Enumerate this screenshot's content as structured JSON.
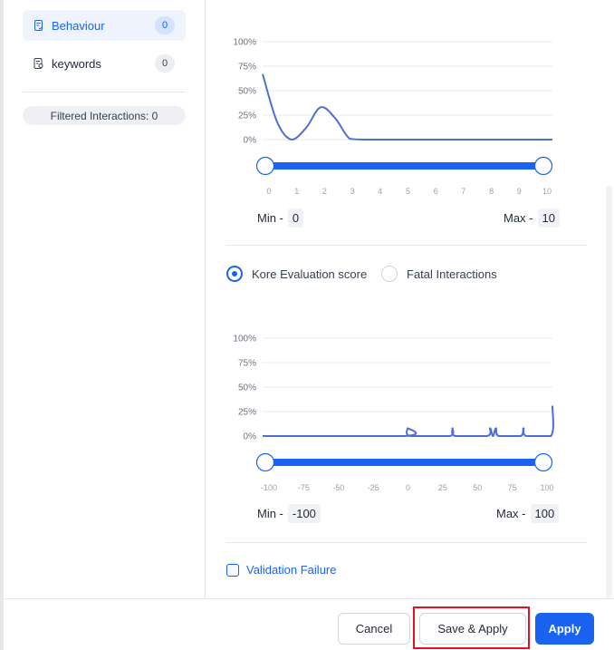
{
  "sidebar": {
    "items": [
      {
        "label": "Behaviour",
        "count": "0",
        "icon": "document-check-icon",
        "active": true
      },
      {
        "label": "keywords",
        "count": "0",
        "icon": "document-search-icon",
        "active": false
      }
    ],
    "filtered": "Filtered Interactions: 0"
  },
  "colors": {
    "accent": "#1a62f0",
    "line": "#4f6fd0",
    "highlight": "#e0141e"
  },
  "chart_data": [
    {
      "type": "line",
      "x_ticks": [
        "0",
        "1",
        "2",
        "3",
        "4",
        "5",
        "6",
        "7",
        "8",
        "9",
        "10"
      ],
      "y_ticks": [
        "100%",
        "75%",
        "50%",
        "25%",
        "0%"
      ],
      "xlim": [
        0,
        10
      ],
      "ylim": [
        0,
        100
      ],
      "points": [
        [
          0,
          67
        ],
        [
          0.5,
          18
        ],
        [
          1,
          0
        ],
        [
          1.5,
          12
        ],
        [
          2,
          33
        ],
        [
          2.5,
          22
        ],
        [
          3,
          1
        ],
        [
          3.5,
          0
        ],
        [
          4,
          0
        ],
        [
          5,
          0
        ],
        [
          6,
          0
        ],
        [
          7,
          0
        ],
        [
          8,
          0
        ],
        [
          9,
          0
        ],
        [
          10,
          0
        ]
      ],
      "range": {
        "min_label": "Min -",
        "min": "0",
        "max_label": "Max -",
        "max": "10"
      }
    },
    {
      "type": "line",
      "x_ticks": [
        "-100",
        "-75",
        "-50",
        "-25",
        "0",
        "25",
        "50",
        "75",
        "100"
      ],
      "y_ticks": [
        "100%",
        "75%",
        "50%",
        "25%",
        "0%"
      ],
      "xlim": [
        -100,
        100
      ],
      "ylim": [
        0,
        100
      ],
      "points": [
        [
          -100,
          0
        ],
        [
          -2,
          0
        ],
        [
          0,
          8
        ],
        [
          2,
          0
        ],
        [
          29,
          0
        ],
        [
          31,
          8
        ],
        [
          33,
          0
        ],
        [
          55,
          0
        ],
        [
          57,
          8
        ],
        [
          59,
          0
        ],
        [
          61,
          8
        ],
        [
          63,
          0
        ],
        [
          78,
          0
        ],
        [
          80,
          8
        ],
        [
          82,
          0
        ],
        [
          99,
          0
        ],
        [
          100,
          31
        ]
      ],
      "range": {
        "min_label": "Min -",
        "min": "-100",
        "max_label": "Max -",
        "max": "100"
      }
    }
  ],
  "options": {
    "radio": [
      {
        "label": "Kore Evaluation score",
        "selected": true
      },
      {
        "label": "Fatal Interactions",
        "selected": false
      }
    ],
    "checkbox": {
      "label": "Validation Failure",
      "checked": false
    }
  },
  "footer": {
    "cancel": "Cancel",
    "save_apply": "Save & Apply",
    "apply": "Apply"
  }
}
